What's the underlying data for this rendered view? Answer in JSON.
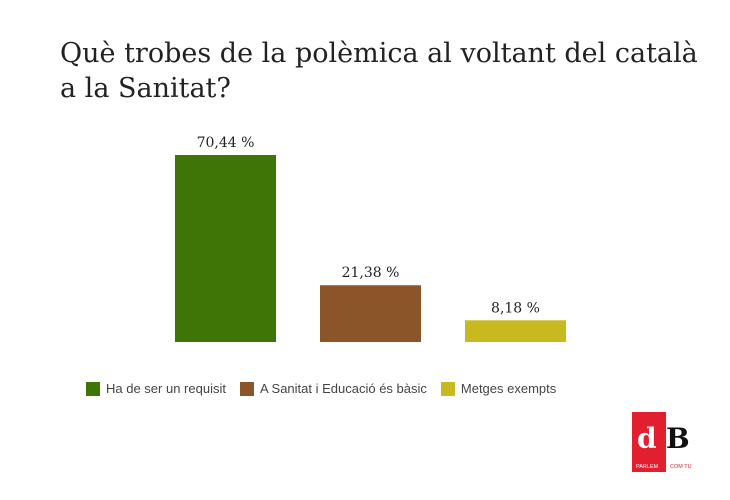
{
  "chart_data": {
    "type": "bar",
    "title": "Què trobes de la polèmica al voltant del català a la Sanitat?",
    "categories": [
      "Ha de ser un requisit",
      "A Sanitat i Educació és bàsic",
      "Metges exempts"
    ],
    "values": [
      70.44,
      21.38,
      8.18
    ],
    "labels": [
      "70,44 %",
      "21,38 %",
      "8,18 %"
    ],
    "colors": [
      "#3f7407",
      "#8b5529",
      "#c7b91e"
    ],
    "ylim": [
      0,
      70.44
    ],
    "legend": "bottom",
    "grid": false
  },
  "logo": {
    "text": "dB",
    "tagline": "PARLEM COM TU",
    "color": "#e21f2f"
  }
}
